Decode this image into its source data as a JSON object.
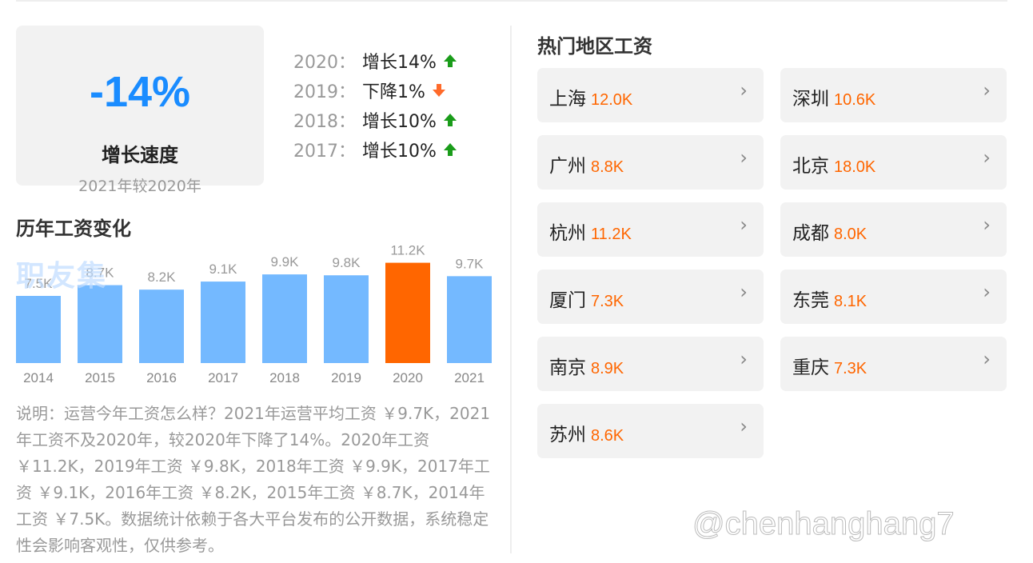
{
  "growth": {
    "value": "-14%",
    "label": "增长速度",
    "subtitle": "2021年较2020年"
  },
  "yearly_growth": [
    {
      "year": "2020：",
      "text": "增长14%",
      "direction": "up"
    },
    {
      "year": "2019：",
      "text": "下降1%",
      "direction": "down"
    },
    {
      "year": "2018：",
      "text": "增长10%",
      "direction": "up"
    },
    {
      "year": "2017：",
      "text": "增长10%",
      "direction": "up"
    }
  ],
  "colors": {
    "accent_blue": "#1a8cff",
    "bar_blue": "#74b9ff",
    "highlight_orange": "#ff6600",
    "arrow_up_green": "#1a9c1a",
    "arrow_down_orange": "#ff6a2a"
  },
  "history_title": "历年工资变化",
  "watermark_jiyou": "职友集",
  "chart_data": {
    "type": "bar",
    "categories": [
      "2014",
      "2015",
      "2016",
      "2017",
      "2018",
      "2019",
      "2020",
      "2021"
    ],
    "values": [
      7.5,
      8.7,
      8.2,
      9.1,
      9.9,
      9.8,
      11.2,
      9.7
    ],
    "value_labels": [
      "7.5K",
      "8.7K",
      "8.2K",
      "9.1K",
      "9.9K",
      "9.8K",
      "11.2K",
      "9.7K"
    ],
    "highlight_category": "2020",
    "grid": false
  },
  "description": "说明：运营今年工资怎么样？2021年运营平均工资 ￥9.7K，2021年工资不及2020年，较2020年下降了14%。2020年工资 ￥11.2K，2019年工资 ￥9.8K，2018年工资 ￥9.9K，2017年工资 ￥9.1K，2016年工资 ￥8.2K，2015年工资 ￥8.7K，2014年工资 ￥7.5K。数据统计依赖于各大平台发布的公开数据，系统稳定性会影响客观性，仅供参考。",
  "hot_regions_title": "热门地区工资",
  "cities": [
    {
      "name": "上海",
      "salary": "12.0K"
    },
    {
      "name": "深圳",
      "salary": "10.6K"
    },
    {
      "name": "广州",
      "salary": "8.8K"
    },
    {
      "name": "北京",
      "salary": "18.0K"
    },
    {
      "name": "杭州",
      "salary": "11.2K"
    },
    {
      "name": "成都",
      "salary": "8.0K"
    },
    {
      "name": "厦门",
      "salary": "7.3K"
    },
    {
      "name": "东莞",
      "salary": "8.1K"
    },
    {
      "name": "南京",
      "salary": "8.9K"
    },
    {
      "name": "重庆",
      "salary": "7.3K"
    },
    {
      "name": "苏州",
      "salary": "8.6K"
    }
  ],
  "watermark": "@chenhanghang7"
}
